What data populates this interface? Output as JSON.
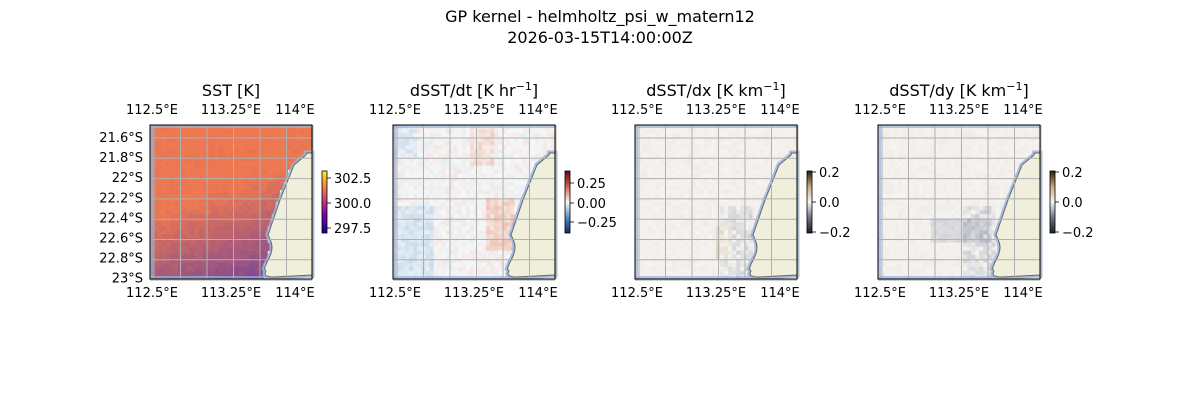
{
  "figure": {
    "title": "GP kernel - helmholtz_psi_w_matern12",
    "subtitle": "2026-03-15T14:00:00Z"
  },
  "chart_data": [
    {
      "type": "heatmap",
      "title": "SST [K]",
      "title_main": "SST [K]",
      "title_sup": "",
      "title_tail": "",
      "xticks": [
        "112.5°E",
        "113.25°E",
        "114°E"
      ],
      "yticks": [
        "21.6°S",
        "21.8°S",
        "22°S",
        "22.2°S",
        "22.4°S",
        "22.6°S",
        "22.8°S",
        "23°S"
      ],
      "show_y_labels": true,
      "colorbar_ticks": [
        "302.5",
        "300.0",
        "297.5"
      ],
      "colormap": "plasma-like",
      "colorbar_range": [
        296.8,
        303.6
      ],
      "colors": {
        "land": "#efefdb",
        "ocean_edge": "#98b4de",
        "grid": "#b0b0b0"
      }
    },
    {
      "type": "heatmap",
      "title": "dSST/dt [K hr-1]",
      "title_main": "dSST/dt [K hr",
      "title_sup": "−1",
      "title_tail": "]",
      "xticks": [
        "112.5°E",
        "113.25°E",
        "114°E"
      ],
      "yticks": [],
      "show_y_labels": false,
      "colorbar_ticks": [
        "0.25",
        "0.00",
        "−0.25"
      ],
      "colormap": "diverging red-blue",
      "colorbar_range": [
        -0.4,
        0.4
      ],
      "colors": {
        "land": "#efefdb",
        "ocean_edge": "#98b4de",
        "grid": "#b0b0b0"
      }
    },
    {
      "type": "heatmap",
      "title": "dSST/dx [K km-1]",
      "title_main": "dSST/dx [K km",
      "title_sup": "−1",
      "title_tail": "]",
      "xticks": [
        "112.5°E",
        "113.25°E",
        "114°E"
      ],
      "yticks": [],
      "show_y_labels": false,
      "colorbar_ticks": [
        "0.2",
        "0.0",
        "−0.2"
      ],
      "colormap": "diverging brown-gray",
      "colorbar_range": [
        -0.2,
        0.2
      ],
      "colors": {
        "land": "#efefdb",
        "ocean_edge": "#98b4de",
        "grid": "#b0b0b0"
      }
    },
    {
      "type": "heatmap",
      "title": "dSST/dy [K km-1]",
      "title_main": "dSST/dy [K km",
      "title_sup": "−1",
      "title_tail": "]",
      "xticks": [
        "112.5°E",
        "113.25°E",
        "114°E"
      ],
      "yticks": [],
      "show_y_labels": false,
      "colorbar_ticks": [
        "0.2",
        "0.0",
        "−0.2"
      ],
      "colormap": "diverging brown-gray",
      "colorbar_range": [
        -0.2,
        0.2
      ],
      "colors": {
        "land": "#efefdb",
        "ocean_edge": "#98b4de",
        "grid": "#b0b0b0"
      }
    }
  ]
}
